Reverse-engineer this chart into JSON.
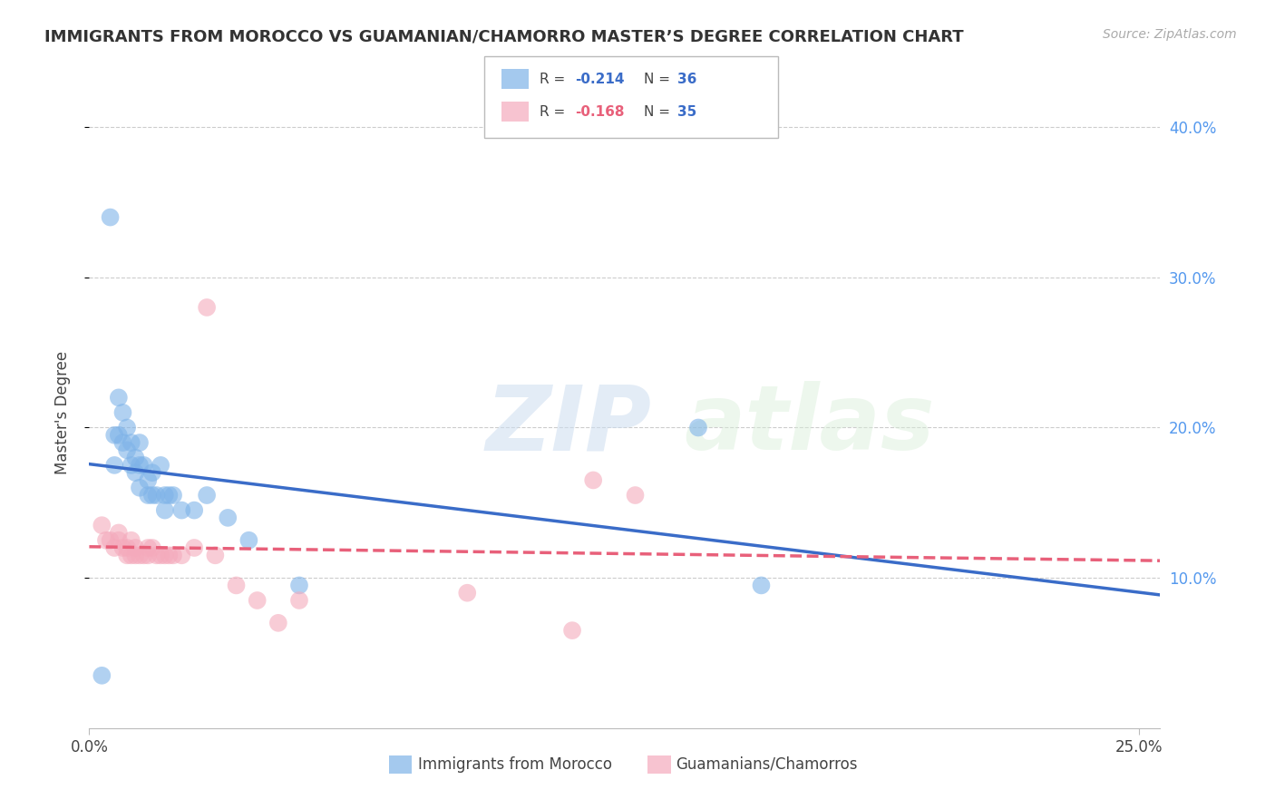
{
  "title": "IMMIGRANTS FROM MOROCCO VS GUAMANIAN/CHAMORRO MASTER’S DEGREE CORRELATION CHART",
  "source": "Source: ZipAtlas.com",
  "ylabel": "Master's Degree",
  "ylim": [
    0.0,
    0.42
  ],
  "xlim": [
    0.0,
    0.255
  ],
  "blue_R": -0.214,
  "blue_N": 36,
  "pink_R": -0.168,
  "pink_N": 35,
  "blue_color": "#7EB3E8",
  "pink_color": "#F4AABC",
  "blue_line_color": "#3A6CC8",
  "pink_line_color": "#E8607A",
  "watermark_zip": "ZIP",
  "watermark_atlas": "atlas",
  "blue_scatter_x": [
    0.003,
    0.005,
    0.006,
    0.006,
    0.007,
    0.007,
    0.008,
    0.008,
    0.009,
    0.009,
    0.01,
    0.01,
    0.011,
    0.011,
    0.012,
    0.012,
    0.012,
    0.013,
    0.014,
    0.014,
    0.015,
    0.015,
    0.016,
    0.017,
    0.018,
    0.018,
    0.019,
    0.02,
    0.022,
    0.025,
    0.028,
    0.033,
    0.038,
    0.05,
    0.145,
    0.16
  ],
  "blue_scatter_y": [
    0.035,
    0.34,
    0.195,
    0.175,
    0.22,
    0.195,
    0.21,
    0.19,
    0.2,
    0.185,
    0.175,
    0.19,
    0.17,
    0.18,
    0.19,
    0.175,
    0.16,
    0.175,
    0.165,
    0.155,
    0.17,
    0.155,
    0.155,
    0.175,
    0.155,
    0.145,
    0.155,
    0.155,
    0.145,
    0.145,
    0.155,
    0.14,
    0.125,
    0.095,
    0.2,
    0.095
  ],
  "pink_scatter_x": [
    0.003,
    0.004,
    0.005,
    0.006,
    0.007,
    0.007,
    0.008,
    0.009,
    0.009,
    0.01,
    0.01,
    0.011,
    0.011,
    0.012,
    0.013,
    0.014,
    0.014,
    0.015,
    0.016,
    0.017,
    0.018,
    0.019,
    0.02,
    0.022,
    0.025,
    0.028,
    0.03,
    0.035,
    0.04,
    0.045,
    0.05,
    0.09,
    0.115,
    0.12,
    0.13
  ],
  "pink_scatter_y": [
    0.135,
    0.125,
    0.125,
    0.12,
    0.13,
    0.125,
    0.12,
    0.115,
    0.12,
    0.115,
    0.125,
    0.115,
    0.12,
    0.115,
    0.115,
    0.12,
    0.115,
    0.12,
    0.115,
    0.115,
    0.115,
    0.115,
    0.115,
    0.115,
    0.12,
    0.28,
    0.115,
    0.095,
    0.085,
    0.07,
    0.085,
    0.09,
    0.065,
    0.165,
    0.155
  ],
  "legend_label_blue": "Immigrants from Morocco",
  "legend_label_pink": "Guamanians/Chamorros",
  "grid_color": "#CCCCCC",
  "background_color": "#FFFFFF",
  "ytick_vals": [
    0.1,
    0.2,
    0.3,
    0.4
  ],
  "ytick_labels": [
    "10.0%",
    "20.0%",
    "30.0%",
    "40.0%"
  ]
}
